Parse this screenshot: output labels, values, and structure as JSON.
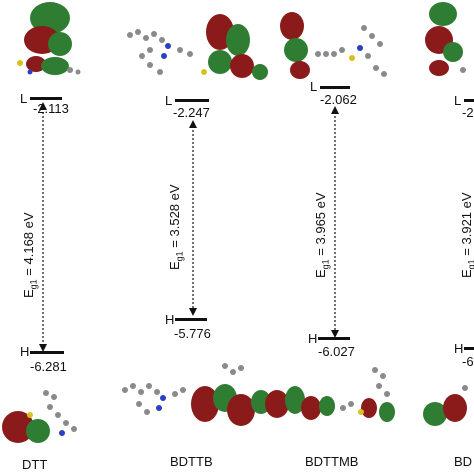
{
  "molecules": [
    {
      "name": "DTT",
      "lumo_label": "L",
      "lumo_value": "-2.113",
      "homo_label": "H",
      "homo_value": "-6.281",
      "gap_prefix": "E",
      "gap_sub": "g1",
      "gap_text": " = 4.168 eV"
    },
    {
      "name": "BDTTB",
      "lumo_label": "L",
      "lumo_value": "-2.247",
      "homo_label": "H",
      "homo_value": "-5.776",
      "gap_prefix": "E",
      "gap_sub": "g1",
      "gap_text": " = 3.528 eV"
    },
    {
      "name": "BDTTMB",
      "lumo_label": "L",
      "lumo_value": "-2.062",
      "homo_label": "H",
      "homo_value": "-6.027",
      "gap_prefix": "E",
      "gap_sub": "g1",
      "gap_text": " = 3.965 eV"
    },
    {
      "name": "BD",
      "lumo_label": "L",
      "lumo_value": "-2",
      "homo_label": "H",
      "homo_value": "-6",
      "gap_prefix": "E",
      "gap_sub": "g1",
      "gap_text": " = 3.921 eV"
    }
  ],
  "colors": {
    "orbital_red": "#8b1a1a",
    "orbital_green": "#2e7d32",
    "carbon": "#8a8a8a",
    "hydrogen": "#e8e8e8",
    "nitrogen": "#2b3fc4",
    "sulfur": "#d6c21e",
    "level_line": "#111111"
  }
}
